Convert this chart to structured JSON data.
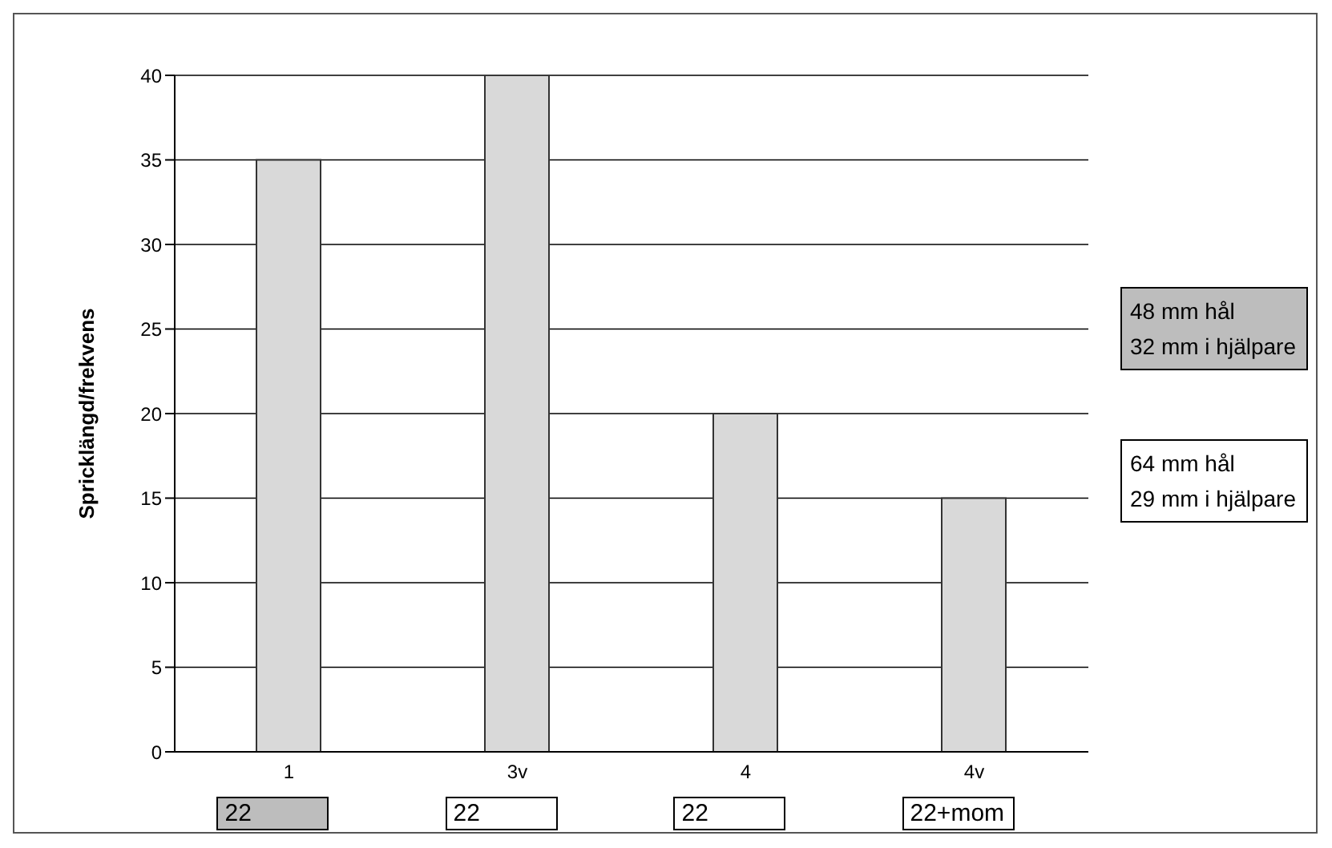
{
  "chart_data": {
    "type": "bar",
    "ylabel": "Spricklängd/frekvens",
    "categories": [
      "1",
      "3v",
      "4",
      "4v"
    ],
    "values": [
      35,
      40,
      20,
      15
    ],
    "color": "#d9d9d9",
    "ylim": [
      0,
      40
    ],
    "yticks": [
      0,
      5,
      10,
      15,
      20,
      25,
      30,
      35,
      40
    ],
    "grid": "y",
    "annotations": [
      "22",
      "22",
      "22",
      "22+mom",
      "48 mm hål\n32 mm i hjälpare",
      "64 mm hål\n29 mm i hjälpare"
    ]
  }
}
